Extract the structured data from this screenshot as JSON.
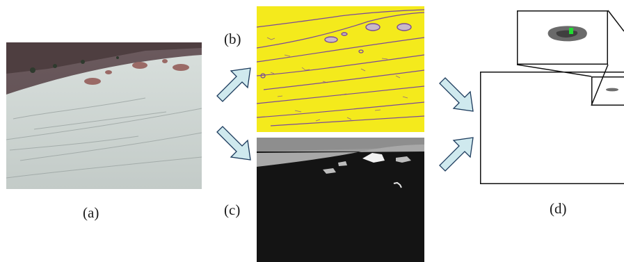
{
  "labels": {
    "a": "(a)",
    "b": "(b)",
    "c": "(c)",
    "d": "(d)"
  },
  "colors": {
    "arrow_fill": "#cfe9ee",
    "arrow_stroke": "#1b3a5c",
    "edge_map_bg": "#f4ea1c",
    "edge_lines": "#7a4a9a",
    "segment_bg": "#141414",
    "segment_sky": "#8e8e8e",
    "segment_hill": "#a8a8a8",
    "detection_marker": "#22dd33"
  }
}
